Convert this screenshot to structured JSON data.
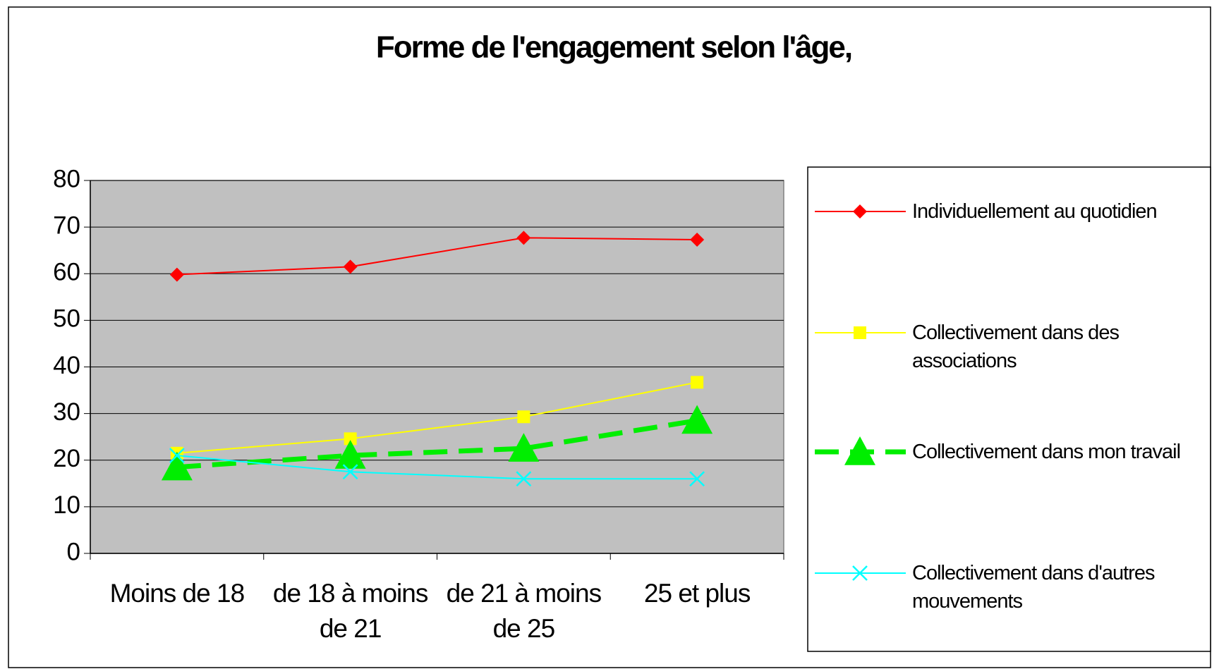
{
  "chart_data": {
    "type": "line",
    "title": "Forme de l'engagement selon l'âge,",
    "categories": [
      "Moins de 18",
      "de 18 à moins de 21",
      "de 21 à moins de 25",
      "25 et plus"
    ],
    "series": [
      {
        "name": "Individuellement au quotidien",
        "color": "#ff0000",
        "marker": "diamond",
        "dashed": false,
        "values": [
          59.8,
          61.5,
          67.7,
          67.3
        ]
      },
      {
        "name": "Collectivement dans des associations",
        "color": "#ffff00",
        "marker": "square",
        "dashed": false,
        "values": [
          21.5,
          24.6,
          29.3,
          36.7
        ]
      },
      {
        "name": "Collectivement dans mon travail",
        "color": "#00ee00",
        "marker": "triangle",
        "dashed": true,
        "values": [
          18.5,
          21,
          22.5,
          28.5
        ]
      },
      {
        "name": "Collectivement dans d'autres mouvements",
        "color": "#00ffff",
        "marker": "x",
        "dashed": false,
        "values": [
          21,
          17.5,
          16,
          16
        ]
      }
    ],
    "ylim": [
      0,
      80
    ],
    "yticks": [
      0,
      10,
      20,
      30,
      40,
      50,
      60,
      70,
      80
    ],
    "grid": true,
    "legend": "right"
  }
}
